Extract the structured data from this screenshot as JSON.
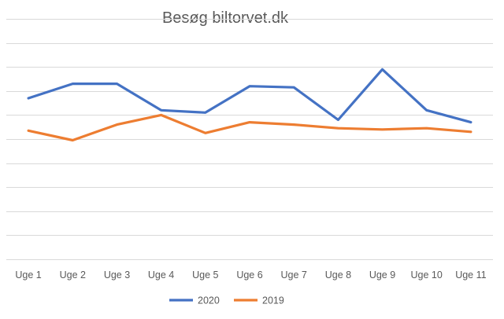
{
  "chart_data": {
    "type": "line",
    "title": "Besøg biltorvet.dk",
    "xlabel": "",
    "ylabel": "",
    "categories": [
      "Uge 1",
      "Uge 2",
      "Uge 3",
      "Uge 4",
      "Uge 5",
      "Uge 6",
      "Uge 7",
      "Uge 8",
      "Uge 9",
      "Uge 10",
      "Uge 11"
    ],
    "series": [
      {
        "name": "2020",
        "color": "#4472C4",
        "values": [
          6.7,
          7.3,
          7.3,
          6.2,
          6.1,
          7.2,
          7.15,
          5.8,
          7.9,
          6.2,
          5.7
        ]
      },
      {
        "name": "2019",
        "color": "#ED7D31",
        "values": [
          5.35,
          4.95,
          5.6,
          6.0,
          5.25,
          5.7,
          5.6,
          5.45,
          5.4,
          5.45,
          5.3
        ]
      }
    ],
    "ylim": [
      0,
      10
    ],
    "y_tick_labels_shown": false,
    "grid": true,
    "legend_position": "bottom"
  }
}
